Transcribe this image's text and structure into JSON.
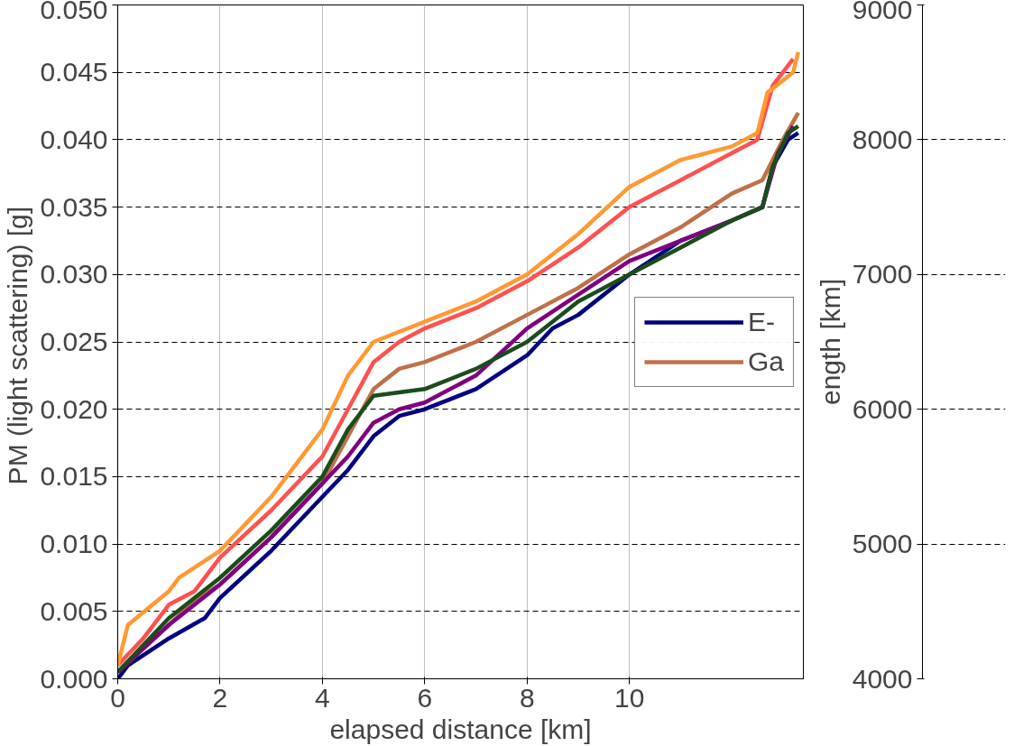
{
  "chart_data": [
    {
      "type": "line",
      "xlabel": "elapsed distance [km]",
      "ylabel": "PM  (light scattering) [g]",
      "xlim": [
        0,
        13.4
      ],
      "ylim": [
        0,
        0.05
      ],
      "xticks": [
        0,
        2,
        4,
        6,
        8,
        10
      ],
      "yticks": [
        {
          "value": 0,
          "label": "0.000"
        },
        {
          "value": 0.005,
          "label": "0.005"
        },
        {
          "value": 0.01,
          "label": "0.010"
        },
        {
          "value": 0.015,
          "label": "0.015"
        },
        {
          "value": 0.02,
          "label": "0.020"
        },
        {
          "value": 0.025,
          "label": "0.025"
        },
        {
          "value": 0.03,
          "label": "0.030"
        },
        {
          "value": 0.035,
          "label": "0.035"
        },
        {
          "value": 0.04,
          "label": "0.040"
        },
        {
          "value": 0.045,
          "label": "0.045"
        },
        {
          "value": 0.05,
          "label": "0.050"
        }
      ],
      "grid": true,
      "legend": "right",
      "line_style": "solid",
      "marker": "none",
      "series": [
        {
          "name": "E-",
          "color": "#000080",
          "x": [
            0,
            0.2,
            1,
            1.7,
            2,
            3,
            4,
            4.5,
            5,
            5.5,
            6,
            7,
            8,
            8.5,
            9,
            10,
            11,
            12,
            12.6,
            12.8,
            13.1,
            13.3
          ],
          "values": [
            0,
            0.001,
            0.003,
            0.0045,
            0.006,
            0.0095,
            0.0135,
            0.0155,
            0.018,
            0.0195,
            0.02,
            0.0215,
            0.024,
            0.026,
            0.027,
            0.03,
            0.0325,
            0.034,
            0.035,
            0.038,
            0.04,
            0.0405
          ]
        },
        {
          "name": "Ga",
          "color": "#c0704a",
          "x": [
            0,
            1,
            1.5,
            2,
            3,
            4,
            4.5,
            5,
            5.5,
            6,
            7,
            8,
            9,
            10,
            11,
            12,
            12.6,
            13,
            13.3
          ],
          "values": [
            0.0005,
            0.004,
            0.0058,
            0.007,
            0.0105,
            0.0145,
            0.018,
            0.0215,
            0.023,
            0.0235,
            0.025,
            0.027,
            0.029,
            0.0315,
            0.0335,
            0.036,
            0.037,
            0.04,
            0.042
          ]
        },
        {
          "color": "#800080",
          "x": [
            0,
            1,
            2,
            3,
            4,
            4.5,
            5,
            5.5,
            6,
            7,
            8,
            9,
            10,
            11,
            12,
            12.6,
            12.9,
            13.2
          ],
          "values": [
            0.0005,
            0.004,
            0.007,
            0.0105,
            0.0145,
            0.0165,
            0.019,
            0.02,
            0.0205,
            0.0225,
            0.026,
            0.0285,
            0.031,
            0.0325,
            0.034,
            0.035,
            0.039,
            0.041
          ]
        },
        {
          "color": "#1a4d1a",
          "x": [
            0,
            1,
            2,
            3,
            4,
            4.5,
            5,
            6,
            7,
            8,
            9,
            10,
            11,
            12,
            12.6,
            12.8,
            13.1,
            13.3
          ],
          "values": [
            0.0005,
            0.0045,
            0.0075,
            0.011,
            0.015,
            0.0185,
            0.021,
            0.0215,
            0.023,
            0.025,
            0.028,
            0.03,
            0.032,
            0.034,
            0.035,
            0.038,
            0.0405,
            0.041
          ]
        },
        {
          "color": "#ff5050",
          "x": [
            0,
            0.5,
            1,
            1.5,
            2,
            3,
            4,
            4.5,
            5,
            5.5,
            6,
            7,
            8,
            9,
            10,
            11,
            12,
            12.5,
            12.8,
            13.2
          ],
          "values": [
            0.001,
            0.003,
            0.0055,
            0.0065,
            0.009,
            0.0125,
            0.0165,
            0.02,
            0.0235,
            0.025,
            0.026,
            0.0275,
            0.0295,
            0.032,
            0.035,
            0.037,
            0.039,
            0.04,
            0.044,
            0.046
          ]
        },
        {
          "color": "#ff9933",
          "x": [
            0,
            0.2,
            1,
            1.2,
            2,
            3,
            4,
            4.5,
            5,
            6,
            7,
            8,
            9,
            10,
            11,
            12,
            12.5,
            12.7,
            13.2,
            13.3
          ],
          "values": [
            0.001,
            0.004,
            0.0065,
            0.0075,
            0.0095,
            0.0135,
            0.0185,
            0.0225,
            0.025,
            0.0265,
            0.028,
            0.03,
            0.033,
            0.0365,
            0.0385,
            0.0395,
            0.0405,
            0.0435,
            0.045,
            0.0465
          ]
        }
      ]
    },
    {
      "type": "line",
      "categories": [
        null
      ],
      "values": [
        null
      ],
      "ylabel": "ength [km]",
      "ylim": [
        4000,
        9000
      ],
      "yticks": [
        4000,
        5000,
        6000,
        7000,
        8000,
        9000
      ],
      "tick_labels": "y",
      "grid": "y"
    }
  ]
}
